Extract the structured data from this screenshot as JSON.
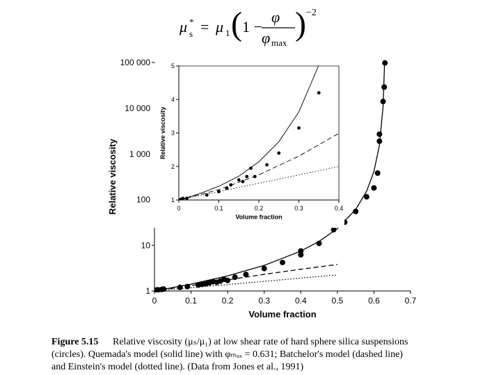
{
  "equation": {
    "parts": [
      "μ",
      "*",
      "s",
      "=",
      "μ",
      "1",
      "1 −",
      "φ",
      "φ",
      "max",
      "−2"
    ]
  },
  "chart_data": [
    {
      "type": "scatter",
      "xlabel": "Volume fraction",
      "ylabel": "Relative viscosity",
      "xlim": [
        0,
        0.7
      ],
      "xticks": [
        0,
        0.1,
        0.2,
        0.3,
        0.4,
        0.5,
        0.6,
        0.7
      ],
      "ylim": [
        1,
        100000
      ],
      "ylog": true,
      "yticks": [
        1,
        10,
        100,
        {
          "value": 1000,
          "label": "1 000"
        },
        {
          "value": 10000,
          "label": "10 000"
        },
        {
          "value": 100000,
          "label": "100 000"
        }
      ],
      "frame": false,
      "grid": false,
      "series": [
        {
          "style": "solid",
          "color": "#000000",
          "x": [
            0,
            0.1,
            0.2,
            0.3,
            0.4,
            0.45,
            0.5,
            0.55,
            0.58,
            0.6,
            0.615,
            0.625,
            0.629
          ],
          "values": [
            1,
            1.41,
            2.14,
            3.63,
            7.46,
            12.2,
            23.2,
            60.7,
            153,
            414,
            1555,
            11060,
            99500
          ]
        },
        {
          "style": "dashed",
          "color": "#000000",
          "x": [
            0,
            0.1,
            0.2,
            0.3,
            0.4,
            0.5
          ],
          "values": [
            1,
            1.31,
            1.75,
            2.31,
            2.99,
            3.8
          ]
        },
        {
          "style": "dotted",
          "color": "#000000",
          "x": [
            0,
            0.5
          ],
          "values": [
            1,
            2.25
          ]
        },
        {
          "style": "marker",
          "color": "#000000",
          "x": [
            0.005,
            0.01,
            0.02,
            0.025,
            0.07,
            0.09,
            0.12,
            0.13,
            0.14,
            0.15,
            0.16,
            0.17,
            0.18,
            0.19,
            0.2,
            0.22,
            0.25,
            0.3,
            0.35,
            0.4,
            0.4,
            0.45,
            0.49,
            0.52,
            0.55,
            0.58,
            0.6,
            0.61,
            0.615,
            0.615,
            0.625,
            0.628,
            0.63
          ],
          "values": [
            1.05,
            1.06,
            1.08,
            1.1,
            1.2,
            1.25,
            1.35,
            1.4,
            1.45,
            1.5,
            1.6,
            1.55,
            1.65,
            1.8,
            1.7,
            2.0,
            2.3,
            3.1,
            4.2,
            6.2,
            7.5,
            11,
            22,
            32,
            55,
            115,
            180,
            380,
            1900,
            2700,
            14000,
            29000,
            98000
          ]
        }
      ]
    },
    {
      "type": "scatter",
      "xlabel": "Volume fraction",
      "ylabel": "Relative viscosity",
      "xlim": [
        0,
        0.4
      ],
      "xticks": [
        0,
        0.1,
        0.2,
        0.3,
        0.4
      ],
      "ylim": [
        1,
        5
      ],
      "ylog": false,
      "yticks": [
        1,
        2,
        3,
        4,
        5
      ],
      "frame": true,
      "grid": false,
      "series": [
        {
          "style": "solid",
          "color": "#000000",
          "x": [
            0,
            0.05,
            0.1,
            0.15,
            0.2,
            0.25,
            0.3,
            0.35
          ],
          "values": [
            1,
            1.18,
            1.41,
            1.71,
            2.14,
            2.74,
            3.63,
            5.03
          ]
        },
        {
          "style": "dashed",
          "color": "#000000",
          "x": [
            0,
            0.1,
            0.2,
            0.3,
            0.4
          ],
          "values": [
            1,
            1.31,
            1.75,
            2.31,
            2.99
          ]
        },
        {
          "style": "dotted",
          "color": "#000000",
          "x": [
            0,
            0.4
          ],
          "values": [
            1,
            2.0
          ]
        },
        {
          "style": "marker",
          "color": "#000000",
          "x": [
            0.005,
            0.01,
            0.02,
            0.07,
            0.1,
            0.12,
            0.13,
            0.15,
            0.16,
            0.17,
            0.18,
            0.19,
            0.22,
            0.25,
            0.3,
            0.35
          ],
          "values": [
            1.02,
            1.05,
            1.05,
            1.15,
            1.25,
            1.35,
            1.45,
            1.6,
            1.55,
            1.7,
            1.95,
            1.7,
            2.05,
            2.4,
            3.15,
            4.2
          ]
        }
      ]
    }
  ],
  "caption": {
    "label": "Figure 5.15",
    "lines": [
      "Relative viscosity (μₛ/μ₁) at low shear rate of hard sphere silica suspensions",
      "(circles). Quemada's model (solid line) with φₘₐₓ = 0.631; Batchelor's model (dashed line)",
      "and Einstein's model (dotted line). (Data from Jones et al., 1991)"
    ]
  }
}
